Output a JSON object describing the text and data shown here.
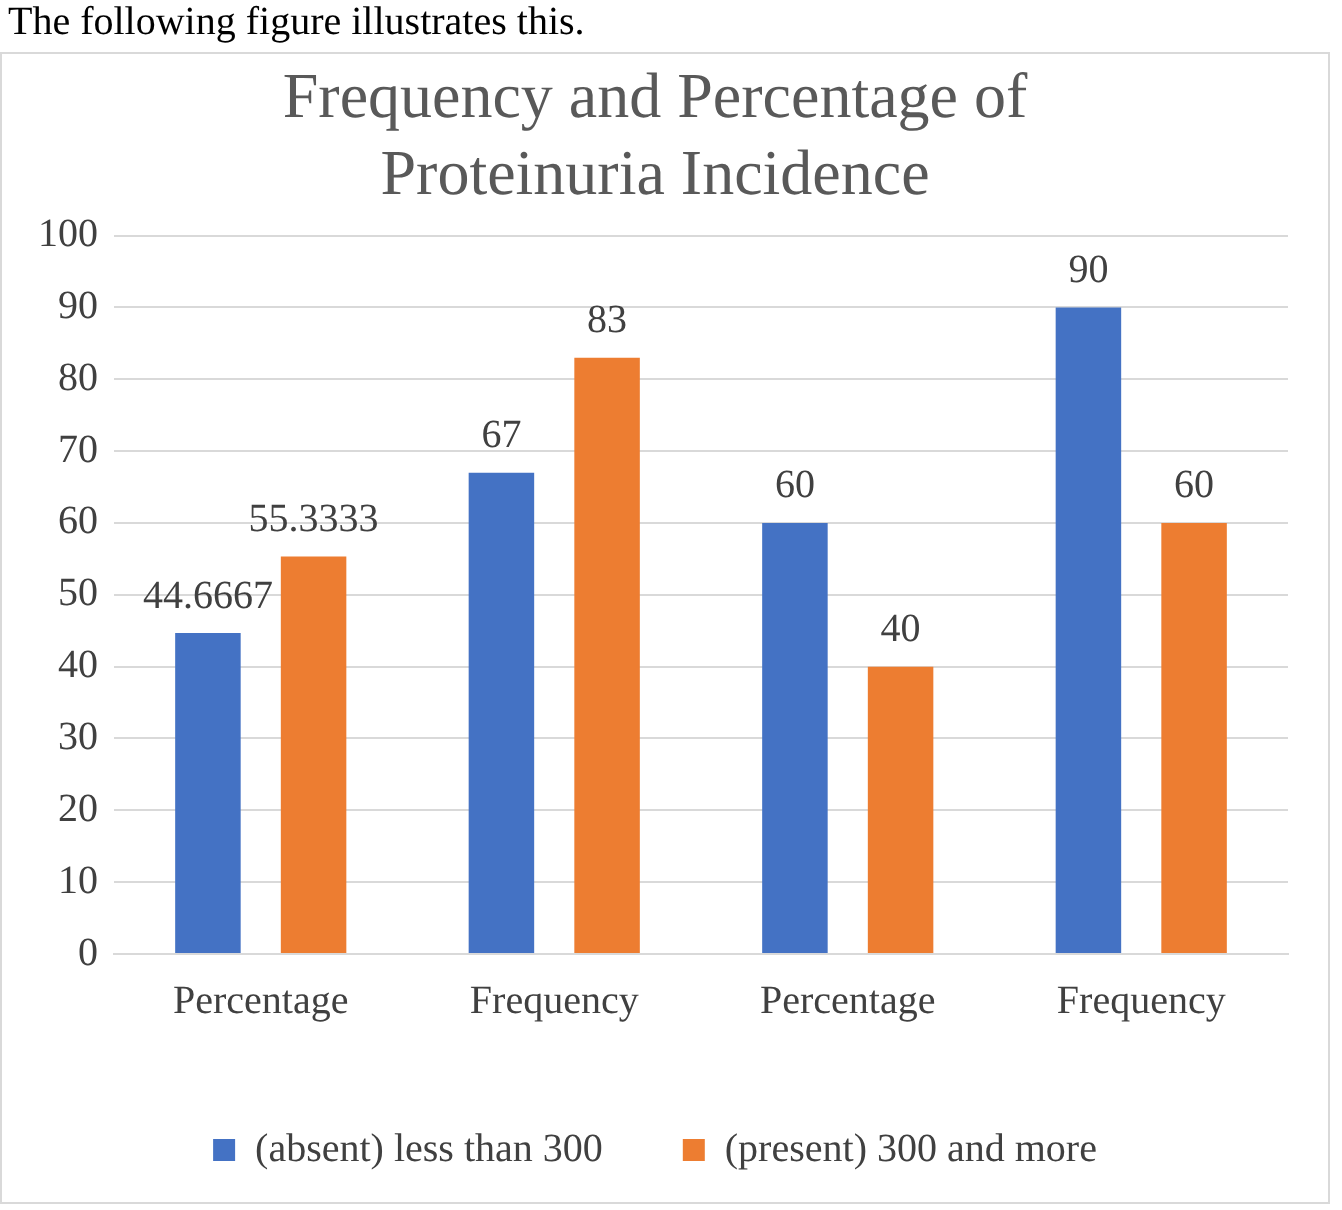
{
  "chart_data": {
    "type": "bar",
    "title": "Frequency and Percentage of Proteinuria Incidence",
    "annotations": [
      "The following figure illustrates this."
    ],
    "categories": [
      "Percentage",
      "Frequency",
      "Percentage",
      "Frequency"
    ],
    "series": [
      {
        "name": "(absent) less than 300",
        "color": "#4472c4",
        "values": [
          44.6667,
          67,
          60,
          90
        ]
      },
      {
        "name": "(present) 300 and more",
        "color": "#ed7d31",
        "values": [
          55.3333,
          83,
          40,
          60
        ]
      }
    ],
    "ylim": [
      0,
      100
    ],
    "yticks": [
      0,
      10,
      20,
      30,
      40,
      50,
      60,
      70,
      80,
      90,
      100
    ],
    "grid": "y",
    "legend": "bottom",
    "data_labels": true
  }
}
